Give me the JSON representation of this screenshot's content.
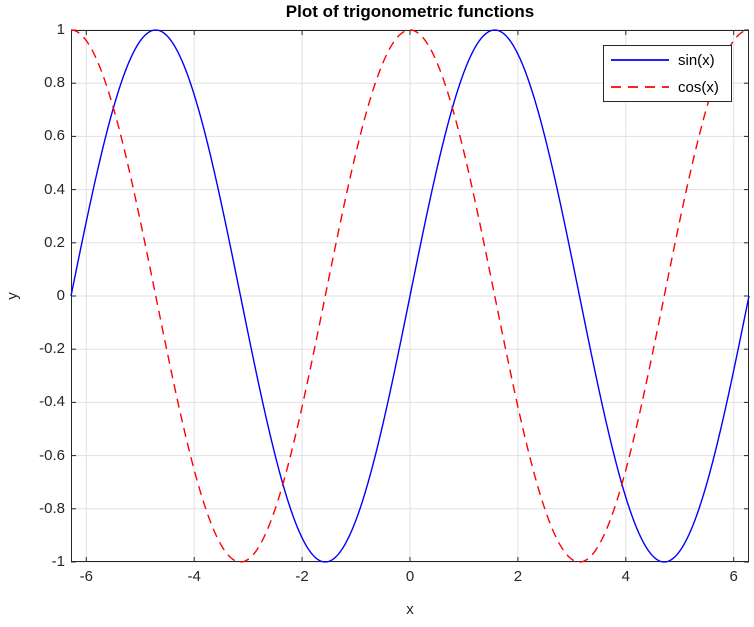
{
  "figure": {
    "background": "#ffffff"
  },
  "chart_data": {
    "type": "line",
    "title": "Plot of trigonometric functions",
    "xlabel": "x",
    "ylabel": "y",
    "xlim": [
      -6.2832,
      6.2832
    ],
    "ylim": [
      -1,
      1
    ],
    "x_ticks": [
      -6,
      -4,
      -2,
      0,
      2,
      4,
      6
    ],
    "x_tick_labels": [
      "-6",
      "-4",
      "-2",
      "0",
      "2",
      "4",
      "6"
    ],
    "y_ticks": [
      1,
      0.8,
      0.6,
      0.4,
      0.2,
      0,
      -0.2,
      -0.4,
      -0.6,
      -0.8,
      -1
    ],
    "y_tick_labels": [
      "1",
      "0.8",
      "0.6",
      "0.4",
      "0.2",
      "0",
      "-0.2",
      "-0.4",
      "-0.6",
      "-0.8",
      "-1"
    ],
    "grid": true,
    "grid_color": "#e0e0e0",
    "axis_color": "#262626",
    "tick_length": 5,
    "legend": {
      "position": "top-right",
      "background": "#ffffff",
      "border_color": "#262626"
    },
    "series": [
      {
        "name": "sin(x)",
        "function": "sin",
        "color": "#0000ff",
        "line_style": "solid",
        "line_width": 1.4,
        "samples": 500
      },
      {
        "name": "cos(x)",
        "function": "cos",
        "color": "#ff0000",
        "line_style": "dashed",
        "line_width": 1.4,
        "samples": 500
      }
    ]
  }
}
